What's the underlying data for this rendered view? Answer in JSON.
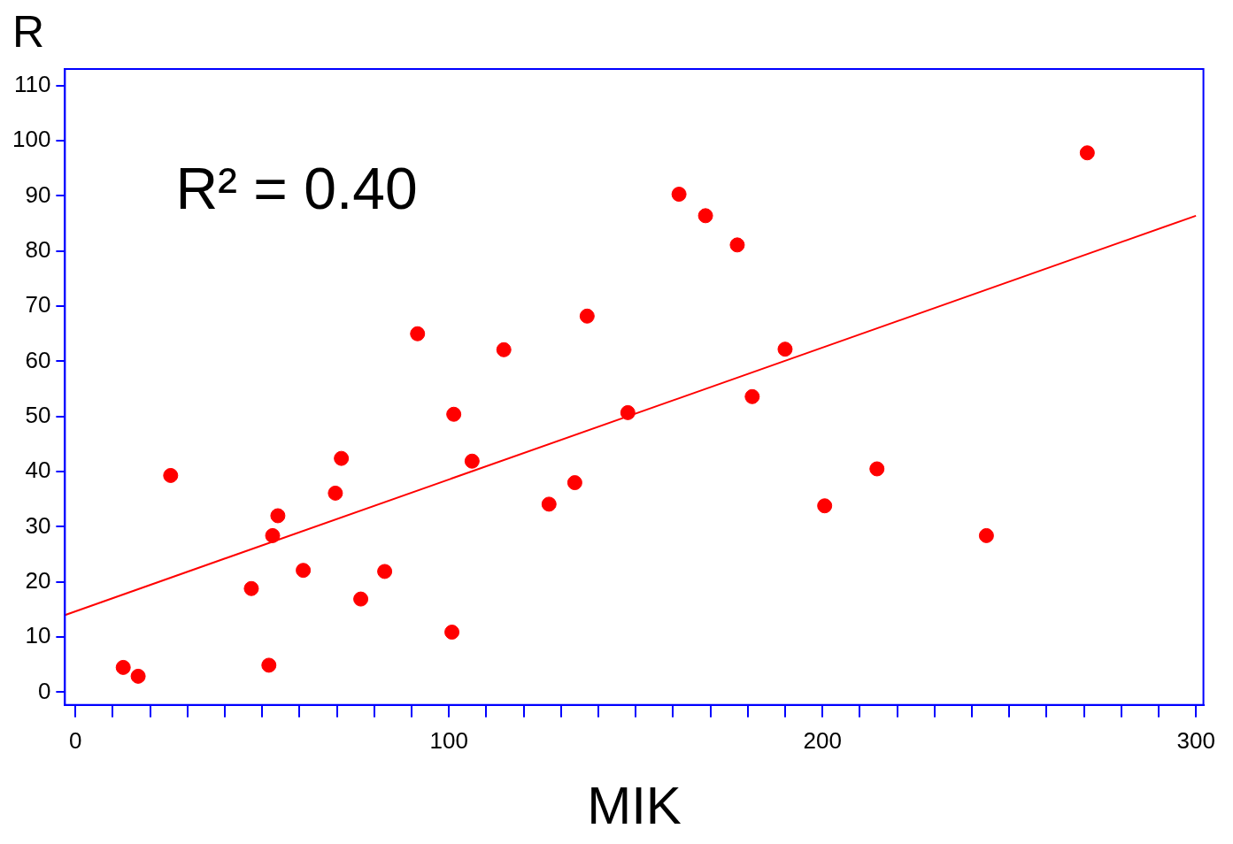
{
  "chart_data": {
    "type": "scatter",
    "xlabel": "MIK",
    "ylabel": "R",
    "annotations": [
      "R² = 0.40"
    ],
    "xlim": [
      -2.8,
      302
    ],
    "ylim": [
      -2.3,
      113
    ],
    "xticks": [
      0,
      {
        "value": 10,
        "label": null
      },
      {
        "value": 20,
        "label": null
      },
      {
        "value": 30,
        "label": null
      },
      {
        "value": 40,
        "label": null
      },
      {
        "value": 50,
        "label": null
      },
      {
        "value": 60,
        "label": null
      },
      {
        "value": 70,
        "label": null
      },
      {
        "value": 80,
        "label": null
      },
      {
        "value": 90,
        "label": null
      },
      100,
      {
        "value": 110,
        "label": null
      },
      {
        "value": 120,
        "label": null
      },
      {
        "value": 130,
        "label": null
      },
      {
        "value": 140,
        "label": null
      },
      {
        "value": 150,
        "label": null
      },
      {
        "value": 160,
        "label": null
      },
      {
        "value": 170,
        "label": null
      },
      {
        "value": 180,
        "label": null
      },
      {
        "value": 190,
        "label": null
      },
      200,
      {
        "value": 210,
        "label": null
      },
      {
        "value": 220,
        "label": null
      },
      {
        "value": 230,
        "label": null
      },
      {
        "value": 240,
        "label": null
      },
      {
        "value": 250,
        "label": null
      },
      {
        "value": 260,
        "label": null
      },
      {
        "value": 270,
        "label": null
      },
      {
        "value": 280,
        "label": null
      },
      {
        "value": 290,
        "label": null
      },
      300
    ],
    "yticks": [
      0,
      10,
      20,
      30,
      40,
      50,
      60,
      70,
      80,
      90,
      100,
      110
    ],
    "series": [
      {
        "color": "#ff0000",
        "marker": "circle",
        "x": [
          12.8,
          16.8,
          25.5,
          47.1,
          51.8,
          52.8,
          54.2,
          61.0,
          69.6,
          71.2,
          76.4,
          82.8,
          91.6,
          100.8,
          101.3,
          106.2,
          114.7,
          126.8,
          133.7,
          137.0,
          147.9,
          161.6,
          168.7,
          177.2,
          181.2,
          190.0,
          200.6,
          214.6,
          243.9,
          270.9
        ],
        "values": [
          4.5,
          2.9,
          39.3,
          18.8,
          4.9,
          28.4,
          32.0,
          22.1,
          36.1,
          42.4,
          16.9,
          21.9,
          65.0,
          10.9,
          50.4,
          41.9,
          62.1,
          34.1,
          38.0,
          68.2,
          50.7,
          90.3,
          86.4,
          81.1,
          53.6,
          62.2,
          33.8,
          40.5,
          28.4,
          97.8
        ]
      },
      {
        "type": "line",
        "color": "#ff0000",
        "x": [
          -2.8,
          300
        ],
        "values": [
          14.0,
          86.4
        ]
      }
    ]
  }
}
